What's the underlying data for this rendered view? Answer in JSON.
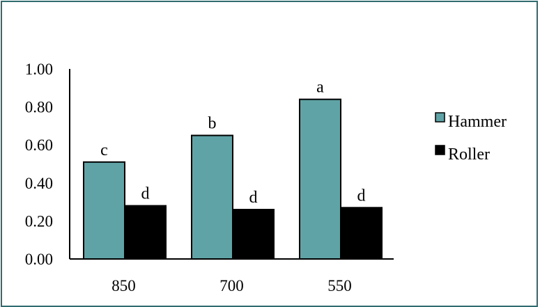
{
  "chart_data": {
    "type": "bar",
    "categories": [
      "850",
      "700",
      "550"
    ],
    "series": [
      {
        "name": "Hammer",
        "values": [
          0.51,
          0.65,
          0.84
        ],
        "labels": [
          "c",
          "b",
          "a"
        ],
        "color": "#5fa3a6"
      },
      {
        "name": "Roller",
        "values": [
          0.28,
          0.26,
          0.27
        ],
        "labels": [
          "d",
          "d",
          "d"
        ],
        "color": "#000000"
      }
    ],
    "ylim": [
      0,
      1.0
    ],
    "yticks": [
      "0.00",
      "0.20",
      "0.40",
      "0.60",
      "0.80",
      "1.00"
    ],
    "ytick_values": [
      0,
      0.2,
      0.4,
      0.6,
      0.8,
      1.0
    ],
    "grid": false,
    "legend_position": "right",
    "title": "",
    "xlabel": "",
    "ylabel": ""
  }
}
